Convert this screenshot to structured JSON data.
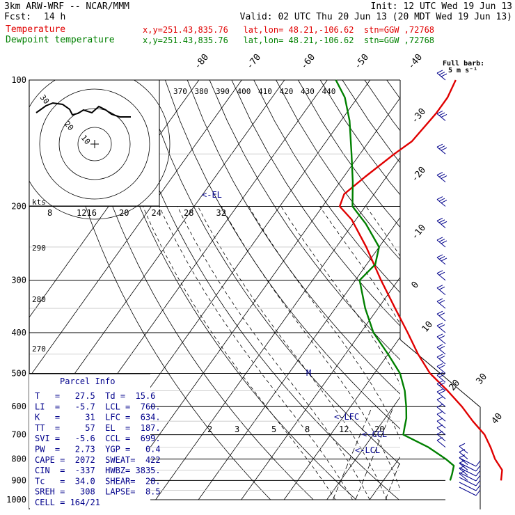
{
  "header": {
    "model": "3km ARW-WRF -- NCAR/MMM",
    "init": "Init: 12 UTC Wed 19 Jun 13",
    "fcst_label": "Fcst:",
    "fcst_value": "14 h",
    "valid": "Valid: 02 UTC Thu 20 Jun 13 (20 MDT Wed 19 Jun 13)",
    "temp_label": "Temperature",
    "temp_info": "x,y=251.43,835.76   lat,lon= 48.21,-106.62  stn=GGW ,72768",
    "dew_label": "Dewpoint temperature",
    "dew_info": "x,y=251.43,835.76   lat,lon= 48.21,-106.62  stn=GGW ,72768"
  },
  "colors": {
    "temperature": "#e00000",
    "dewpoint": "#008000",
    "wind": "#00008b"
  },
  "parcel": {
    "title": "Parcel Info",
    "rows": [
      "T   =   27.5  Td =  15.6",
      "LI  =   -5.7  LCL =  760.",
      "K   =     31  LFC =  634.",
      "TT  =     57  EL  =  187.",
      "SVI =   -5.6  CCL =  699.",
      "PW  =   2.73  YGP =   0.4",
      "CAPE =  2072  SWEAT=  422",
      "CIN  =  -337  HWBZ= 3835.",
      "Tc   =  34.0  SHEAR=  28.",
      "SREH =   308  LAPSE=  8.5",
      "CELL = 164/21"
    ]
  },
  "hodograph": {
    "unit_label": "kts",
    "ring_labels": [
      "30",
      "20",
      "10"
    ]
  },
  "wind_key": {
    "line1": "Full barb:",
    "line2": "5 m s⁻¹"
  },
  "annotations": {
    "el": "<-EL",
    "lfc": "<-LFC",
    "ccl": "<-CCL",
    "lcl": "<-LCL",
    "storm_motion": "M"
  },
  "chart_data": {
    "type": "skew-t",
    "pressure_axis": {
      "levels": [
        100,
        200,
        300,
        400,
        500,
        600,
        700,
        800,
        900,
        1000
      ],
      "scale": "log"
    },
    "isotherm_labels": [
      "-80",
      "-70",
      "-60",
      "-50",
      "-40",
      "-30",
      "-20",
      "-10",
      "0",
      "10",
      "20",
      "30",
      "40"
    ],
    "theta_labels": [
      "370",
      "380",
      "390",
      "400",
      "410",
      "420",
      "430",
      "440"
    ],
    "mixing_ratio_labels": [
      "2",
      "3",
      "5",
      "8",
      "12",
      "20"
    ],
    "thetae_labels": [
      "290",
      "280",
      "270"
    ],
    "wetbulb_labels": [
      "8",
      "12",
      "16",
      "20",
      "24",
      "28",
      "32"
    ],
    "series": [
      {
        "name": "Temperature",
        "color": "#e00000",
        "points": [
          [
            900,
            27.5
          ],
          [
            850,
            26
          ],
          [
            800,
            22.5
          ],
          [
            750,
            19.5
          ],
          [
            700,
            16
          ],
          [
            650,
            11
          ],
          [
            600,
            6
          ],
          [
            550,
            0
          ],
          [
            500,
            -7
          ],
          [
            450,
            -13
          ],
          [
            400,
            -19
          ],
          [
            350,
            -26
          ],
          [
            300,
            -34
          ],
          [
            250,
            -43
          ],
          [
            215,
            -51
          ],
          [
            200,
            -56
          ],
          [
            187,
            -57
          ],
          [
            170,
            -55
          ],
          [
            150,
            -52
          ],
          [
            140,
            -50
          ],
          [
            120,
            -49
          ],
          [
            110,
            -49
          ],
          [
            100,
            -50
          ]
        ]
      },
      {
        "name": "Dewpoint temperature",
        "color": "#008000",
        "points": [
          [
            900,
            15.6
          ],
          [
            870,
            15
          ],
          [
            830,
            14
          ],
          [
            800,
            11
          ],
          [
            750,
            5
          ],
          [
            700,
            -3
          ],
          [
            670,
            -4
          ],
          [
            640,
            -5
          ],
          [
            600,
            -7
          ],
          [
            550,
            -10
          ],
          [
            500,
            -14
          ],
          [
            450,
            -20
          ],
          [
            400,
            -27
          ],
          [
            350,
            -33
          ],
          [
            300,
            -39
          ],
          [
            275,
            -38
          ],
          [
            250,
            -40
          ],
          [
            220,
            -47
          ],
          [
            200,
            -53
          ],
          [
            175,
            -57
          ],
          [
            150,
            -62
          ],
          [
            125,
            -68
          ],
          [
            110,
            -73
          ],
          [
            100,
            -78
          ]
        ]
      }
    ]
  }
}
